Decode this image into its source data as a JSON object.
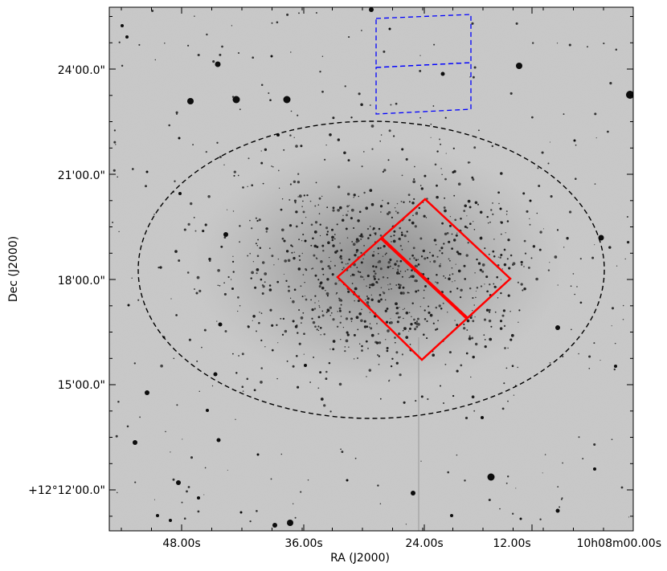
{
  "figure": {
    "x_axis_label": "RA (J2000)",
    "y_axis_label": "Dec (J2000)",
    "x_tick_labels": [
      "48.00s",
      "36.00s",
      "24.00s",
      "12.00s",
      "10h08m00.00s"
    ],
    "y_tick_labels": [
      "24'00.0\"",
      "21'00.0\"",
      "18'00.0\"",
      "15'00.0\"",
      "+12°12'00.0\""
    ],
    "colors": {
      "sky_background": "#c9c9c9",
      "stars": "#111111",
      "galaxy_ellipse": "#000000",
      "slit_box": "#ff0000",
      "offset_box": "#0000ff",
      "axes_frame": "#000000"
    },
    "overlays": [
      {
        "name": "galaxy-extent-ellipse",
        "style": "dashed",
        "color": "black"
      },
      {
        "name": "red-rotated-slit-box",
        "style": "solid",
        "color": "red"
      },
      {
        "name": "blue-offset-box",
        "style": "dashed",
        "color": "blue"
      }
    ]
  }
}
